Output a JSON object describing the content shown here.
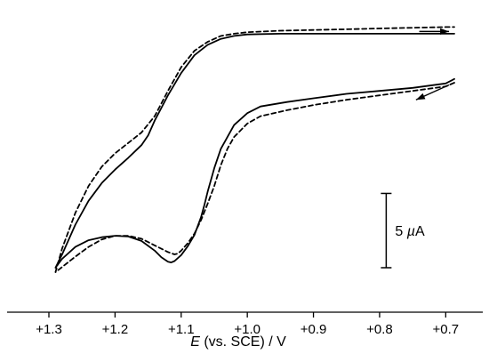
{
  "chart_data": {
    "type": "line",
    "title": "",
    "xlabel": {
      "symbol": "E",
      "rest": " (vs. SCE) / V"
    },
    "ylabel": "",
    "x_reversed": true,
    "xlim": [
      1.3,
      0.687
    ],
    "ylim": [
      0,
      17
    ],
    "y_unit": "µA (arbitrary offset; see scale bar)",
    "x_ticks": [
      1.3,
      1.2,
      1.1,
      1.0,
      0.9,
      0.8,
      0.7
    ],
    "x_tick_labels": [
      "+1.3",
      "+1.2",
      "+1.1",
      "+1.0",
      "+0.9",
      "+0.8",
      "+0.7"
    ],
    "grid": false,
    "legend": "none",
    "scale_bar": {
      "value": 5,
      "label_prefix": "5 ",
      "label_unit": "µA",
      "y_bottom": 0.3,
      "y_top": 5.3,
      "x_position": 0.79
    },
    "arrows": [
      {
        "name": "forward-scan-direction",
        "from_x": 0.74,
        "to_x": 0.695,
        "from_y": 16.2,
        "to_y": 16.2
      },
      {
        "name": "reverse-scan-direction",
        "from_x": 0.695,
        "to_x": 0.745,
        "from_y": 12.6,
        "to_y": 11.6
      }
    ],
    "series": [
      {
        "style": "solid",
        "color": "#000000",
        "x": [
          0.687,
          0.7,
          0.75,
          0.8,
          0.85,
          0.9,
          0.94,
          0.98,
          1.0,
          1.02,
          1.04,
          1.05,
          1.06,
          1.065,
          1.07,
          1.075,
          1.08,
          1.09,
          1.1,
          1.11,
          1.115,
          1.12,
          1.13,
          1.14,
          1.16,
          1.18,
          1.2,
          1.22,
          1.24,
          1.26,
          1.28,
          1.29,
          1.29,
          1.28,
          1.26,
          1.24,
          1.22,
          1.2,
          1.18,
          1.16,
          1.15,
          1.14,
          1.12,
          1.1,
          1.08,
          1.06,
          1.04,
          1.02,
          1.0,
          0.95,
          0.9,
          0.85,
          0.8,
          0.75,
          0.7,
          0.687
        ],
        "y": [
          13.0,
          12.7,
          12.4,
          12.2,
          12.0,
          11.7,
          11.45,
          11.15,
          10.7,
          9.9,
          8.3,
          7.0,
          5.4,
          4.5,
          3.7,
          3.1,
          2.5,
          1.75,
          1.15,
          0.75,
          0.65,
          0.7,
          1.0,
          1.45,
          2.1,
          2.4,
          2.45,
          2.35,
          2.15,
          1.7,
          0.9,
          0.3,
          0.3,
          1.2,
          3.2,
          4.8,
          6.0,
          6.9,
          7.7,
          8.55,
          9.2,
          10.2,
          11.9,
          13.4,
          14.6,
          15.3,
          15.7,
          15.9,
          16.0,
          16.05,
          16.05,
          16.05,
          16.05,
          16.05,
          16.05,
          16.05
        ]
      },
      {
        "style": "dashed",
        "color": "#000000",
        "x": [
          0.687,
          0.7,
          0.75,
          0.8,
          0.85,
          0.9,
          0.94,
          0.98,
          1.0,
          1.02,
          1.03,
          1.04,
          1.05,
          1.06,
          1.07,
          1.08,
          1.09,
          1.1,
          1.105,
          1.11,
          1.12,
          1.14,
          1.16,
          1.18,
          1.2,
          1.22,
          1.24,
          1.26,
          1.28,
          1.29,
          1.29,
          1.28,
          1.26,
          1.24,
          1.22,
          1.2,
          1.18,
          1.16,
          1.14,
          1.12,
          1.1,
          1.08,
          1.06,
          1.04,
          1.02,
          1.0,
          0.95,
          0.9,
          0.85,
          0.8,
          0.75,
          0.7,
          0.687
        ],
        "y": [
          12.75,
          12.5,
          12.2,
          11.9,
          11.6,
          11.25,
          10.9,
          10.5,
          10.0,
          9.1,
          8.3,
          7.2,
          5.8,
          4.6,
          3.5,
          2.6,
          1.95,
          1.45,
          1.25,
          1.2,
          1.35,
          1.8,
          2.25,
          2.45,
          2.45,
          2.2,
          1.7,
          1.05,
          0.35,
          0.0,
          0.0,
          1.6,
          4.0,
          5.8,
          7.1,
          8.0,
          8.7,
          9.4,
          10.5,
          12.2,
          13.8,
          14.9,
          15.5,
          15.9,
          16.05,
          16.15,
          16.25,
          16.3,
          16.35,
          16.4,
          16.45,
          16.5,
          16.5
        ]
      }
    ]
  }
}
